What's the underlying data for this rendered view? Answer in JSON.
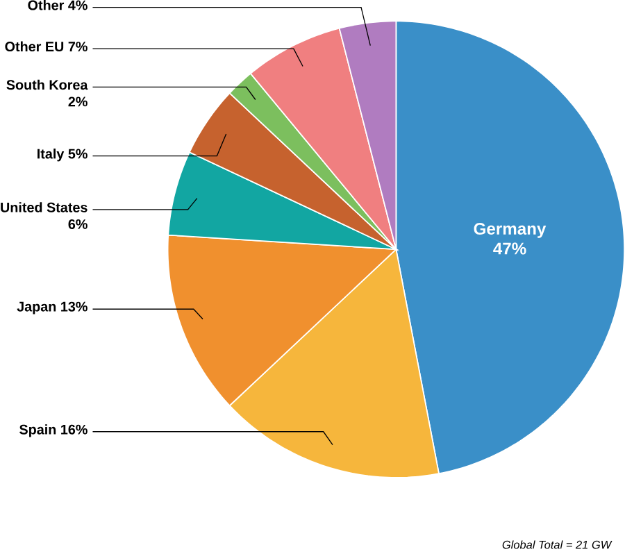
{
  "chart_data": {
    "type": "pie",
    "categories": [
      "Germany",
      "Spain",
      "Japan",
      "United States",
      "Italy",
      "South Korea",
      "Other EU",
      "Other"
    ],
    "values": [
      47,
      16,
      13,
      6,
      5,
      2,
      7,
      4
    ],
    "value_labels": [
      "47%",
      "16%",
      "13%",
      "6%",
      "5%",
      "2%",
      "7%",
      "4%"
    ],
    "colors": [
      "#3a8fc8",
      "#f6b63c",
      "#f0902e",
      "#12a6a2",
      "#c6622e",
      "#7cbf5e",
      "#f07f80",
      "#b07cc0"
    ],
    "annotations": [
      "Global Total = 21 GW"
    ]
  }
}
